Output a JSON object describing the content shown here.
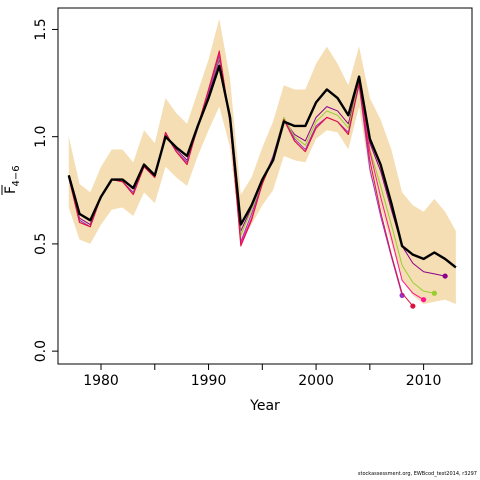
{
  "chart_data": {
    "type": "line",
    "title": "",
    "xlabel": "Year",
    "ylabel_main": "F",
    "ylabel_sub": "4−6",
    "xlim": [
      1976,
      2014.5
    ],
    "ylim": [
      -0.06,
      1.6
    ],
    "x_ticks": [
      1980,
      1990,
      2000,
      2010
    ],
    "x_tick_labels": [
      "1980",
      "1990",
      "2000",
      "2010"
    ],
    "x_minor_ticks": [
      1985,
      1995,
      2005
    ],
    "y_ticks": [
      0.0,
      0.5,
      1.0,
      1.5
    ],
    "y_tick_labels": [
      "0.0",
      "0.5",
      "1.0",
      "1.5"
    ],
    "grid": false,
    "legend": "none",
    "credit": "stockassessment.org, EWBcod_test2014, r3297",
    "band": {
      "name": "confidence interval",
      "color": "#f5deb3",
      "x": [
        1977,
        1978,
        1979,
        1980,
        1981,
        1982,
        1983,
        1984,
        1985,
        1986,
        1987,
        1988,
        1989,
        1990,
        1991,
        1992,
        1993,
        1994,
        1995,
        1996,
        1997,
        1998,
        1999,
        2000,
        2001,
        2002,
        2003,
        2004,
        2005,
        2006,
        2007,
        2008,
        2009,
        2010,
        2011,
        2012,
        2013
      ],
      "upper": [
        1.0,
        0.78,
        0.74,
        0.86,
        0.94,
        0.94,
        0.88,
        1.03,
        0.97,
        1.18,
        1.11,
        1.06,
        1.21,
        1.36,
        1.55,
        1.27,
        0.73,
        0.81,
        0.95,
        1.07,
        1.24,
        1.22,
        1.22,
        1.34,
        1.42,
        1.34,
        1.24,
        1.42,
        1.18,
        1.08,
        0.94,
        0.74,
        0.68,
        0.65,
        0.71,
        0.65,
        0.56
      ],
      "lower": [
        0.67,
        0.52,
        0.5,
        0.59,
        0.66,
        0.67,
        0.63,
        0.74,
        0.69,
        0.86,
        0.81,
        0.77,
        0.91,
        1.03,
        1.14,
        0.95,
        0.51,
        0.59,
        0.68,
        0.75,
        0.91,
        0.89,
        0.88,
        0.99,
        1.03,
        1.02,
        0.94,
        1.14,
        0.82,
        0.67,
        0.5,
        0.33,
        0.26,
        0.22,
        0.23,
        0.24,
        0.22
      ]
    },
    "series": [
      {
        "color": "#000000",
        "width": 2.4,
        "endpoint": false,
        "x": [
          1977,
          1978,
          1979,
          1980,
          1981,
          1982,
          1983,
          1984,
          1985,
          1986,
          1987,
          1988,
          1989,
          1990,
          1991,
          1992,
          1993,
          1994,
          1995,
          1996,
          1997,
          1998,
          1999,
          2000,
          2001,
          2002,
          2003,
          2004,
          2005,
          2006,
          2007,
          2008,
          2009,
          2010,
          2011,
          2012,
          2013
        ],
        "y": [
          0.82,
          0.64,
          0.61,
          0.72,
          0.8,
          0.8,
          0.76,
          0.87,
          0.82,
          1.0,
          0.95,
          0.91,
          1.05,
          1.18,
          1.33,
          1.09,
          0.59,
          0.68,
          0.8,
          0.89,
          1.07,
          1.05,
          1.05,
          1.16,
          1.22,
          1.18,
          1.1,
          1.28,
          0.99,
          0.87,
          0.69,
          0.49,
          0.45,
          0.43,
          0.46,
          0.43,
          0.39
        ]
      },
      {
        "color": "#8b008b",
        "width": 1,
        "endpoint": true,
        "x": [
          1977,
          1978,
          1979,
          1980,
          1981,
          1982,
          1983,
          1984,
          1985,
          1986,
          1987,
          1988,
          1989,
          1990,
          1991,
          1992,
          1993,
          1994,
          1995,
          1996,
          1997,
          1998,
          1999,
          2000,
          2001,
          2002,
          2003,
          2004,
          2005,
          2006,
          2007,
          2008,
          2009,
          2010,
          2011,
          2012
        ],
        "y": [
          0.81,
          0.62,
          0.59,
          0.72,
          0.8,
          0.79,
          0.74,
          0.86,
          0.81,
          1.01,
          0.94,
          0.89,
          1.04,
          1.2,
          1.36,
          1.07,
          0.56,
          0.67,
          0.79,
          0.9,
          1.08,
          1.01,
          0.98,
          1.09,
          1.14,
          1.12,
          1.06,
          1.26,
          0.97,
          0.84,
          0.66,
          0.49,
          0.41,
          0.37,
          0.36,
          0.35
        ]
      },
      {
        "color": "#9acd32",
        "width": 1,
        "endpoint": true,
        "x": [
          1977,
          1978,
          1979,
          1980,
          1981,
          1982,
          1983,
          1984,
          1985,
          1986,
          1987,
          1988,
          1989,
          1990,
          1991,
          1992,
          1993,
          1994,
          1995,
          1996,
          1997,
          1998,
          1999,
          2000,
          2001,
          2002,
          2003,
          2004,
          2005,
          2006,
          2007,
          2008,
          2009,
          2010,
          2011
        ],
        "y": [
          0.81,
          0.61,
          0.58,
          0.72,
          0.8,
          0.79,
          0.74,
          0.86,
          0.81,
          1.01,
          0.93,
          0.88,
          1.04,
          1.21,
          1.37,
          1.06,
          0.54,
          0.66,
          0.78,
          0.91,
          1.09,
          1.0,
          0.96,
          1.07,
          1.12,
          1.1,
          1.04,
          1.26,
          0.94,
          0.77,
          0.59,
          0.4,
          0.32,
          0.28,
          0.27
        ]
      },
      {
        "color": "#9932cc",
        "width": 1,
        "endpoint": true,
        "x": [
          1977,
          1978,
          1979,
          1980,
          1981,
          1982,
          1983,
          1984,
          1985,
          1986,
          1987,
          1988,
          1989,
          1990,
          1991,
          1992,
          1993,
          1994,
          1995,
          1996,
          1997,
          1998,
          1999,
          2000,
          2001,
          2002,
          2003,
          2004,
          2005,
          2006,
          2007,
          2008
        ],
        "y": [
          0.81,
          0.61,
          0.58,
          0.72,
          0.8,
          0.79,
          0.74,
          0.86,
          0.81,
          1.01,
          0.93,
          0.88,
          1.04,
          1.21,
          1.38,
          1.06,
          0.51,
          0.64,
          0.78,
          0.91,
          1.08,
          0.99,
          0.94,
          1.05,
          1.09,
          1.07,
          1.02,
          1.24,
          0.85,
          0.63,
          0.44,
          0.26
        ]
      },
      {
        "color": "#ff1493",
        "width": 1,
        "endpoint": true,
        "x": [
          1977,
          1978,
          1979,
          1980,
          1981,
          1982,
          1983,
          1984,
          1985,
          1986,
          1987,
          1988,
          1989,
          1990,
          1991,
          1992,
          1993,
          1994,
          1995,
          1996,
          1997,
          1998,
          1999,
          2000,
          2001,
          2002,
          2003,
          2004,
          2005,
          2006,
          2007,
          2008,
          2009,
          2010
        ],
        "y": [
          0.81,
          0.6,
          0.58,
          0.72,
          0.8,
          0.79,
          0.73,
          0.86,
          0.81,
          1.02,
          0.93,
          0.87,
          1.05,
          1.22,
          1.39,
          1.07,
          0.5,
          0.62,
          0.78,
          0.9,
          1.08,
          0.98,
          0.93,
          1.04,
          1.09,
          1.07,
          1.01,
          1.25,
          0.93,
          0.72,
          0.53,
          0.33,
          0.27,
          0.24
        ]
      },
      {
        "color": "#dc143c",
        "width": 1,
        "endpoint": true,
        "x": [
          1977,
          1978,
          1979,
          1980,
          1981,
          1982,
          1983,
          1984,
          1985,
          1986,
          1987,
          1988,
          1989,
          1990,
          1991,
          1992,
          1993,
          1994,
          1995,
          1996,
          1997,
          1998,
          1999,
          2000,
          2001,
          2002,
          2003,
          2004,
          2005,
          2006,
          2007,
          2008,
          2009
        ],
        "y": [
          0.81,
          0.6,
          0.58,
          0.72,
          0.8,
          0.79,
          0.73,
          0.86,
          0.81,
          1.02,
          0.93,
          0.87,
          1.05,
          1.22,
          1.4,
          1.07,
          0.49,
          0.61,
          0.78,
          0.9,
          1.08,
          0.98,
          0.93,
          1.04,
          1.09,
          1.07,
          1.01,
          1.25,
          0.89,
          0.65,
          0.45,
          0.27,
          0.21
        ]
      }
    ]
  }
}
